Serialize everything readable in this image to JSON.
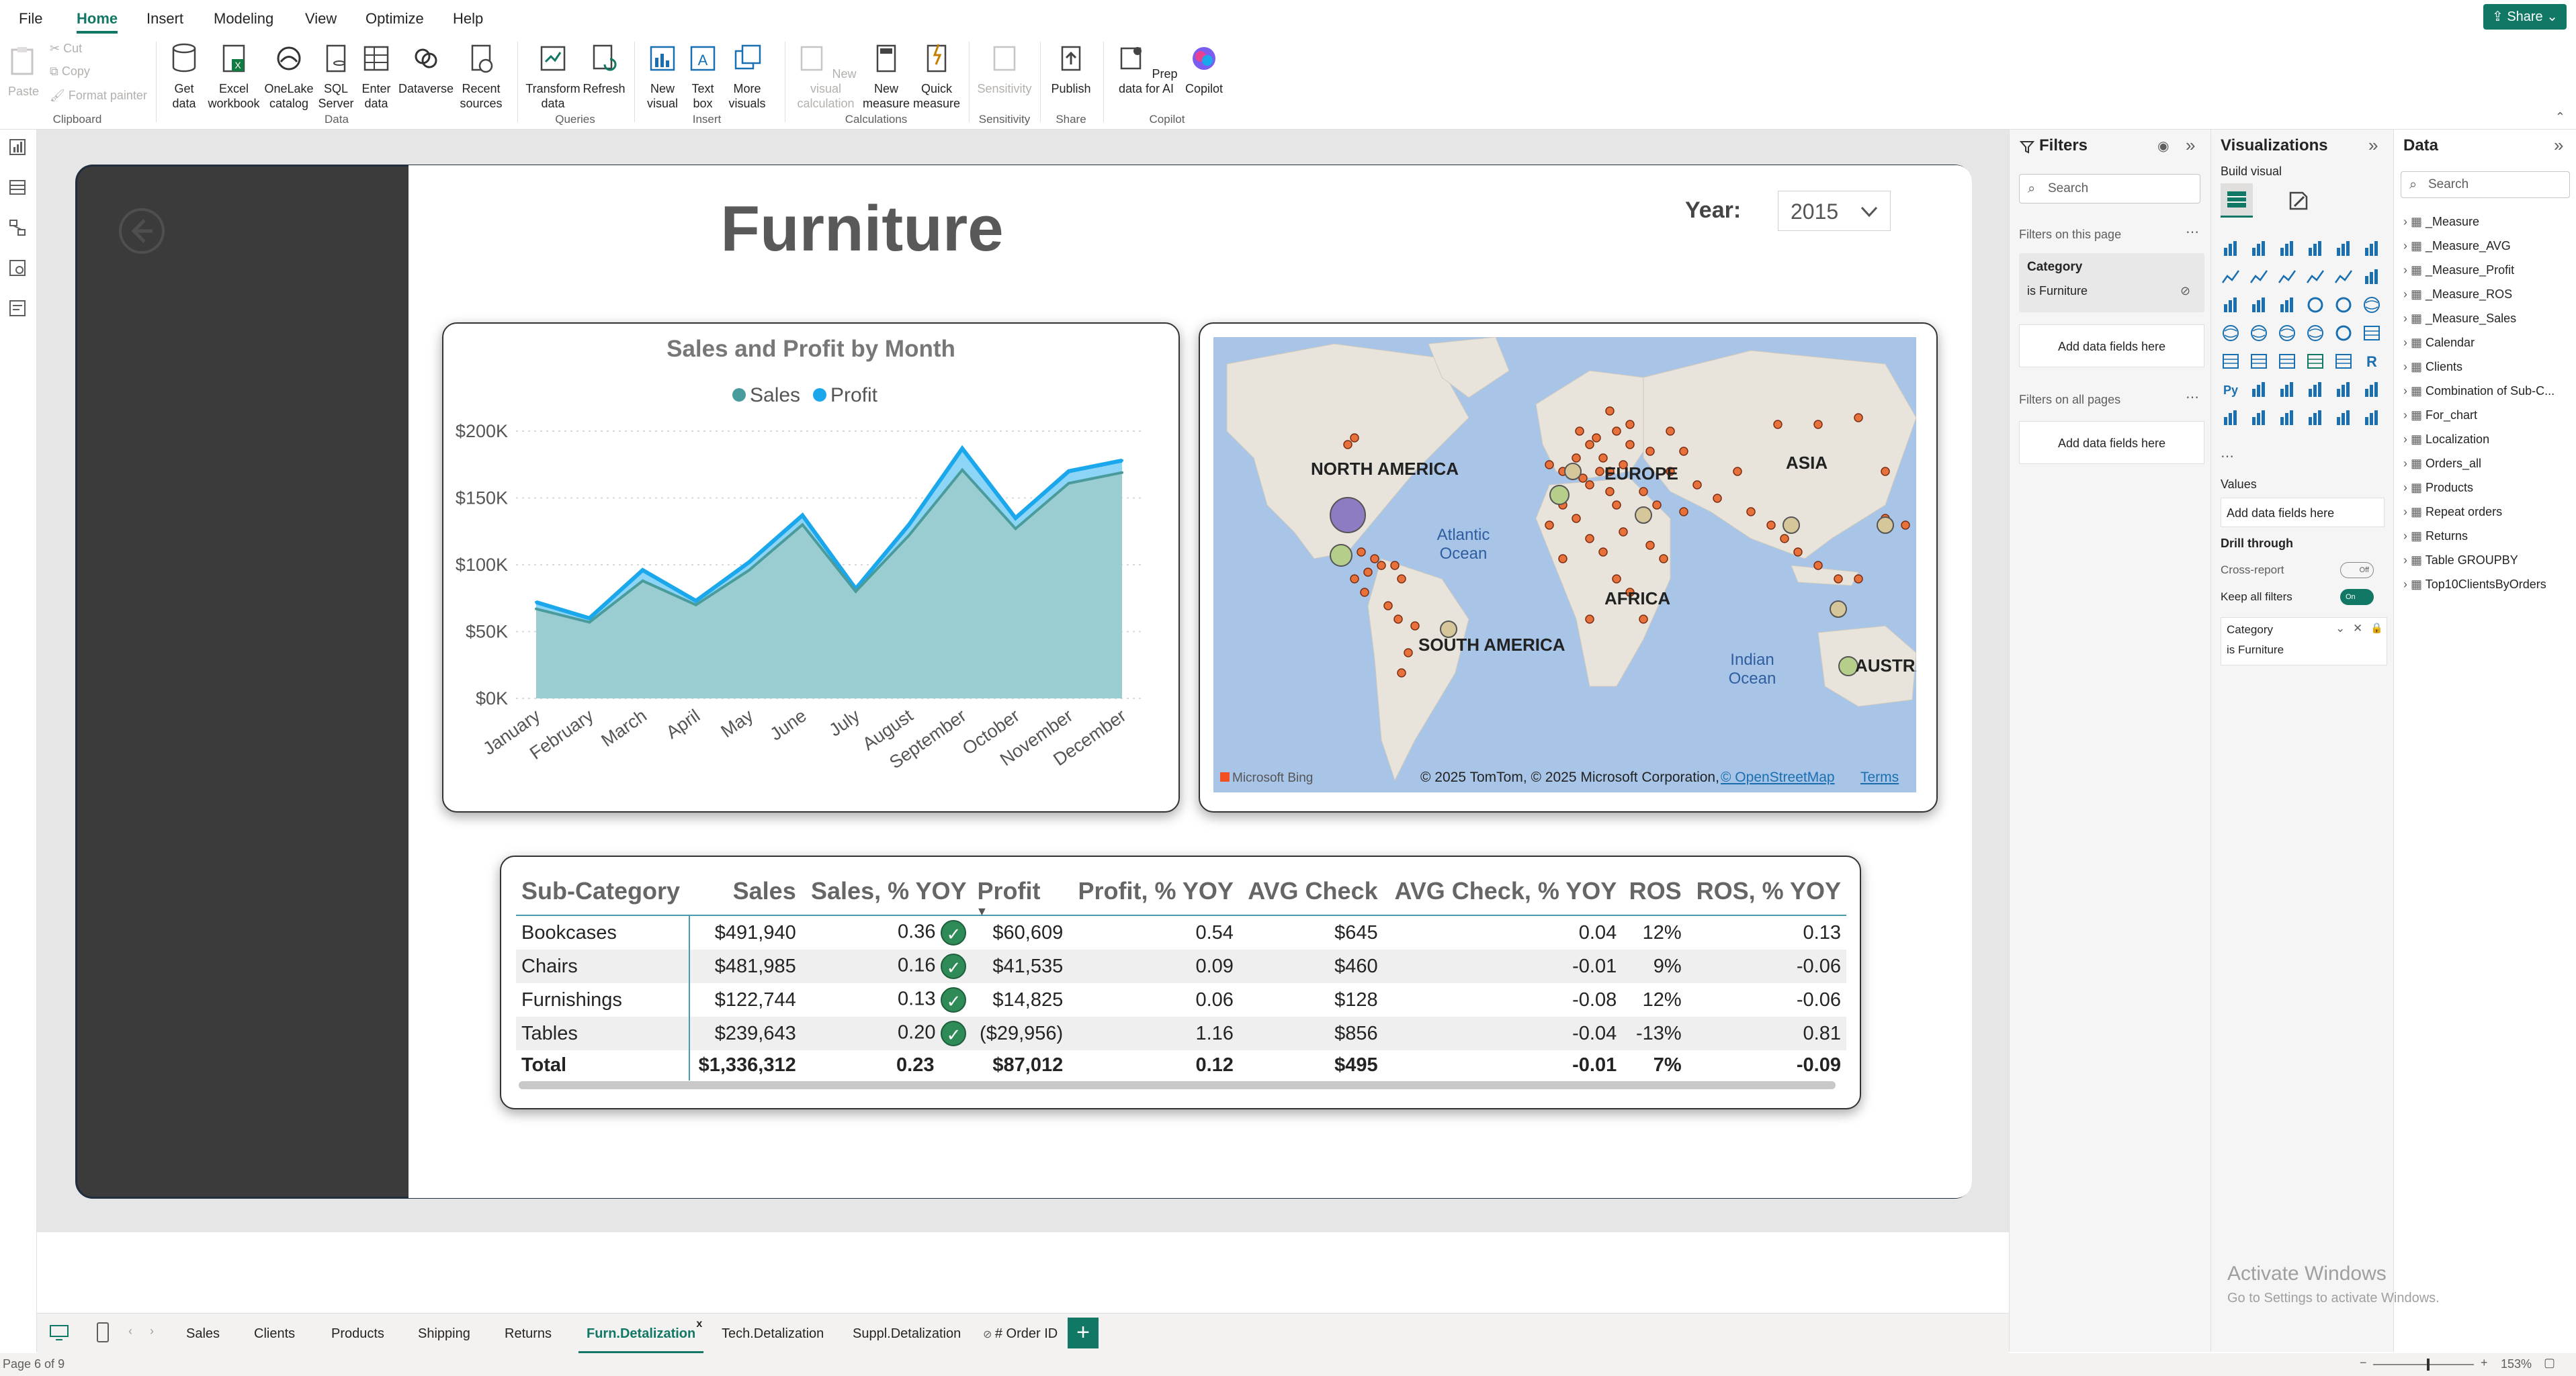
{
  "menu": {
    "items": [
      "File",
      "Home",
      "Insert",
      "Modeling",
      "View",
      "Optimize",
      "Help"
    ],
    "active": "Home",
    "share": "Share"
  },
  "ribbon": {
    "clipboard": {
      "paste": "Paste",
      "cut": "Cut",
      "copy": "Copy",
      "format_painter": "Format painter",
      "label": "Clipboard"
    },
    "data": {
      "get_data": "Get data",
      "excel": "Excel workbook",
      "onelake": "OneLake catalog",
      "sql": "SQL Server",
      "enter": "Enter data",
      "dataverse": "Dataverse",
      "recent": "Recent sources",
      "label": "Data"
    },
    "queries": {
      "transform": "Transform data",
      "refresh": "Refresh",
      "label": "Queries"
    },
    "insert": {
      "new_visual": "New visual",
      "text_box": "Text box",
      "more_visuals": "More visuals",
      "label": "Insert"
    },
    "calculations": {
      "new_visual_calc": "New visual calculation",
      "new_measure": "New measure",
      "quick_measure": "Quick measure",
      "label": "Calculations"
    },
    "sensitivity": {
      "sensitivity": "Sensitivity",
      "label": "Sensitivity"
    },
    "share": {
      "publish": "Publish",
      "label": "Share"
    },
    "copilot": {
      "prep": "Prep data for AI",
      "copilot": "Copilot",
      "label": "Copilot"
    }
  },
  "report": {
    "title": "Furniture",
    "year_label": "Year:",
    "year_value": "2015",
    "map": {
      "labels": [
        "NORTH AMERICA",
        "EUROPE",
        "ASIA",
        "AFRICA",
        "SOUTH AMERICA",
        "AUSTRA"
      ],
      "oceans": [
        "Atlantic Ocean",
        "Indian Ocean"
      ],
      "brand": "Microsoft Bing",
      "copyright": "© 2025 TomTom, © 2025 Microsoft Corporation,",
      "osm": "© OpenStreetMap",
      "terms": "Terms"
    },
    "table": {
      "headers": [
        "Sub-Category",
        "Sales",
        "Sales, % YOY",
        "Profit",
        "Profit, % YOY",
        "AVG Check",
        "AVG Check, % YOY",
        "ROS",
        "ROS, % YOY"
      ],
      "rows": [
        [
          "Bookcases",
          "$491,940",
          "0.36",
          "$60,609",
          "0.54",
          "$645",
          "0.04",
          "12%",
          "0.13"
        ],
        [
          "Chairs",
          "$481,985",
          "0.16",
          "$41,535",
          "0.09",
          "$460",
          "-0.01",
          "9%",
          "-0.06"
        ],
        [
          "Furnishings",
          "$122,744",
          "0.13",
          "$14,825",
          "0.06",
          "$128",
          "-0.08",
          "12%",
          "-0.06"
        ],
        [
          "Tables",
          "$239,643",
          "0.20",
          "($29,956)",
          "1.16",
          "$856",
          "-0.04",
          "-13%",
          "0.81"
        ]
      ],
      "total": [
        "Total",
        "$1,336,312",
        "0.23",
        "$87,012",
        "0.12",
        "$495",
        "-0.01",
        "7%",
        "-0.09"
      ]
    }
  },
  "chart_data": {
    "type": "area",
    "title": "Sales and Profit by Month",
    "categories": [
      "January",
      "February",
      "March",
      "April",
      "May",
      "June",
      "July",
      "August",
      "September",
      "October",
      "November",
      "December"
    ],
    "series": [
      {
        "name": "Sales",
        "values": [
          67000,
          57000,
          88000,
          70000,
          96000,
          130000,
          80000,
          122000,
          171000,
          127000,
          161000,
          169000
        ],
        "color": "#4a9b9b"
      },
      {
        "name": "Profit",
        "values": [
          72000,
          60000,
          96000,
          73000,
          102000,
          137000,
          82000,
          130000,
          187000,
          135000,
          170000,
          178000
        ],
        "color": "#1aa7ec"
      }
    ],
    "yticks": [
      "$0K",
      "$50K",
      "$100K",
      "$150K",
      "$200K"
    ],
    "ylim": [
      0,
      200000
    ],
    "legend": "top-center",
    "grid": true
  },
  "tabs": {
    "items": [
      "Sales",
      "Clients",
      "Products",
      "Shipping",
      "Returns",
      "Furn.Detalization",
      "Tech.Detalization",
      "Suppl.Detalization",
      "# Order ID"
    ],
    "active": "Furn.Detalization",
    "close": "x",
    "add": "+"
  },
  "status": {
    "page": "Page 6 of 9",
    "zoom": "153%"
  },
  "filters": {
    "title": "Filters",
    "search": "Search",
    "on_page": "Filters on this page",
    "card_title": "Category",
    "card_value": "is Furniture",
    "add_fields": "Add data fields here",
    "all_pages": "Filters on all pages"
  },
  "visualizations": {
    "title": "Visualizations",
    "build": "Build visual",
    "values": "Values",
    "add_fields": "Add data fields here",
    "drill": "Drill through",
    "cross_report": "Cross-report",
    "cross_state": "Off",
    "keep_filters": "Keep all filters",
    "keep_state": "On",
    "filter_title": "Category",
    "filter_value": "is Furniture"
  },
  "data_pane": {
    "title": "Data",
    "search": "Search",
    "items": [
      "_Measure",
      "_Measure_AVG",
      "_Measure_Profit",
      "_Measure_ROS",
      "_Measure_Sales",
      "Calendar",
      "Clients",
      "Combination of Sub-C...",
      "For_chart",
      "Localization",
      "Orders_all",
      "Products",
      "Repeat orders",
      "Returns",
      "Table GROUPBY",
      "Top10ClientsByOrders"
    ]
  },
  "watermark": {
    "line1": "Activate Windows",
    "line2": "Go to Settings to activate Windows."
  }
}
